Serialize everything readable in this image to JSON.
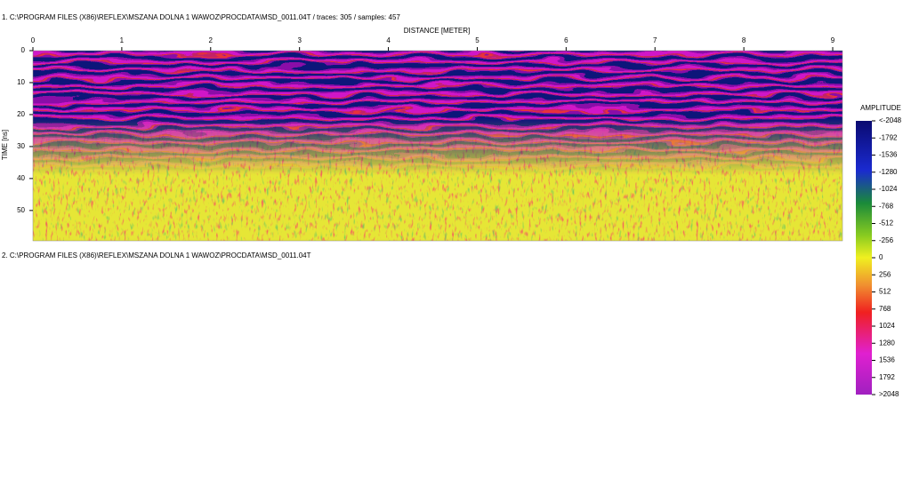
{
  "profiles": [
    {
      "title": "1. C:\\PROGRAM FILES (X86)\\REFLEX\\MSZANA DOLNA 1 WAWOZ\\PROCDATA\\MSD_0011.04T / traces: 305 / samples: 457",
      "x_label": "DISTANCE [METER]",
      "y_label": "TIME [ns]",
      "xlim": [
        0,
        9.11
      ],
      "ylim": [
        0,
        59.5
      ],
      "xticks": [
        0,
        1,
        2,
        3,
        4,
        5,
        6,
        7,
        8,
        9
      ],
      "yticks": [
        0,
        10,
        20,
        30,
        40,
        50
      ]
    },
    {
      "title": "2. C:\\PROGRAM FILES (X86)\\REFLEX\\MSZANA DOLNA 1 WAWOZ\\PROCDATA\\MSD_0011.04T"
    }
  ],
  "colorbar": {
    "title": "AMPLITUDE",
    "lim": [
      -2048,
      2048
    ],
    "ticks": [
      {
        "value": -2048,
        "label": "<-2048"
      },
      -1792,
      -1536,
      -1280,
      -1024,
      -768,
      -512,
      -256,
      0,
      256,
      512,
      768,
      1024,
      1280,
      1536,
      1792,
      {
        "value": 2048,
        "label": ">2048"
      }
    ]
  }
}
